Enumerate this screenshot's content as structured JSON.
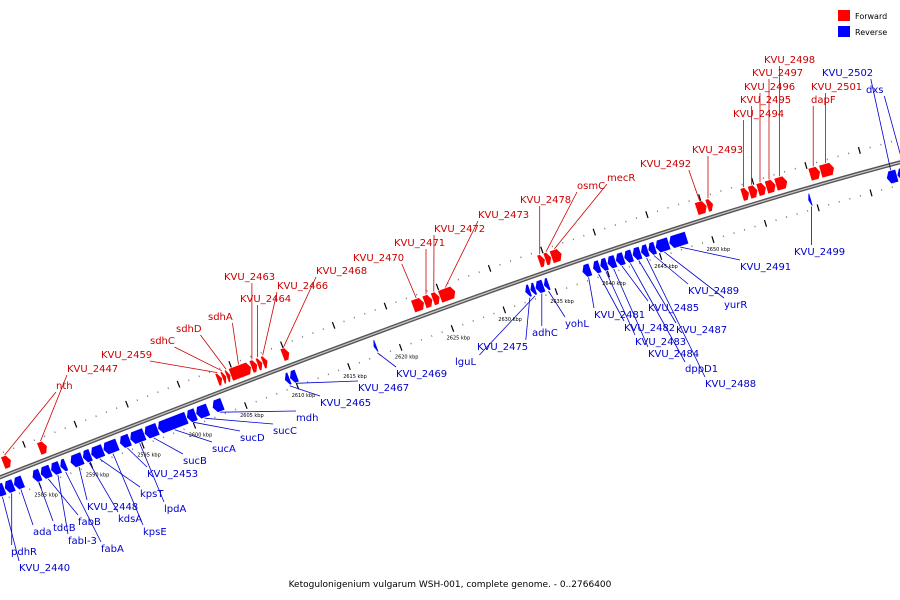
{
  "caption": "Ketogulonigenium vulgarum WSH-001, complete genome. - 0..2766400",
  "legend": [
    {
      "label": "Forward",
      "color": "#ff0000"
    },
    {
      "label": "Reverse",
      "color": "#0000ff"
    }
  ],
  "scale_labels": [
    {
      "text": "2585 kbp",
      "x": 2585
    },
    {
      "text": "2590 kbp",
      "x": 2590
    },
    {
      "text": "2595 kbp",
      "x": 2595
    },
    {
      "text": "2600 kbp",
      "x": 2600
    },
    {
      "text": "2605 kbp",
      "x": 2605
    },
    {
      "text": "2610 kbp",
      "x": 2610
    },
    {
      "text": "2615 kbp",
      "x": 2615
    },
    {
      "text": "2620 kbp",
      "x": 2620
    },
    {
      "text": "2625 kbp",
      "x": 2625
    },
    {
      "text": "2630 kbp",
      "x": 2630
    },
    {
      "text": "2635 kbp",
      "x": 2635
    },
    {
      "text": "2640 kbp",
      "x": 2640
    },
    {
      "text": "2645 kbp",
      "x": 2645
    },
    {
      "text": "2650 kbp",
      "x": 2650
    }
  ],
  "forward_genes": [
    {
      "name": "nth",
      "start": 2582.6,
      "end": 2583.4
    },
    {
      "name": "KVU_2447",
      "start": 2586.1,
      "end": 2586.9
    },
    {
      "name": "KVU_2459",
      "start": 2603.4,
      "end": 2603.9
    },
    {
      "name": "sdhC",
      "start": 2603.9,
      "end": 2604.3
    },
    {
      "name": "sdhD",
      "start": 2604.3,
      "end": 2604.7
    },
    {
      "name": "sdhA",
      "start": 2604.7,
      "end": 2606.7
    },
    {
      "name": "KVU_2463",
      "start": 2606.7,
      "end": 2607.3
    },
    {
      "name": "KVU_2464",
      "start": 2607.3,
      "end": 2607.8
    },
    {
      "name": "KVU_2466",
      "start": 2607.8,
      "end": 2608.3
    },
    {
      "name": "KVU_2468",
      "start": 2609.7,
      "end": 2610.4
    },
    {
      "name": "KVU_2470",
      "start": 2622.3,
      "end": 2623.4
    },
    {
      "name": "KVU_2471",
      "start": 2623.4,
      "end": 2624.2
    },
    {
      "name": "KVU_2472",
      "start": 2624.2,
      "end": 2624.9
    },
    {
      "name": "KVU_2473",
      "start": 2624.9,
      "end": 2626.4
    },
    {
      "name": "KVU_2478",
      "start": 2634.4,
      "end": 2635.0
    },
    {
      "name": "osmC",
      "start": 2635.0,
      "end": 2635.6
    },
    {
      "name": "mecR",
      "start": 2635.6,
      "end": 2636.6
    },
    {
      "name": "KVU_2492",
      "start": 2649.4,
      "end": 2650.4
    },
    {
      "name": "KVU_2493",
      "start": 2650.4,
      "end": 2651.0
    },
    {
      "name": "KVU_2494",
      "start": 2653.7,
      "end": 2654.4
    },
    {
      "name": "KVU_2495",
      "start": 2654.4,
      "end": 2655.2
    },
    {
      "name": "KVU_2496",
      "start": 2655.2,
      "end": 2656.0
    },
    {
      "name": "KVU_2497",
      "start": 2656.0,
      "end": 2656.9
    },
    {
      "name": "KVU_2498",
      "start": 2656.9,
      "end": 2658.0
    },
    {
      "name": "dapF",
      "start": 2660.1,
      "end": 2661.1
    },
    {
      "name": "KVU_2501",
      "start": 2661.1,
      "end": 2662.4
    }
  ],
  "reverse_genes": [
    {
      "name": "KVU_2440",
      "start": 2581.0,
      "end": 2581.9
    },
    {
      "name": "pdhR",
      "start": 2581.9,
      "end": 2582.8
    },
    {
      "name": "ada",
      "start": 2582.8,
      "end": 2583.7
    },
    {
      "name": "tdcB",
      "start": 2584.6,
      "end": 2585.4
    },
    {
      "name": "fabB",
      "start": 2585.4,
      "end": 2586.4
    },
    {
      "name": "fabI-3",
      "start": 2586.4,
      "end": 2587.3
    },
    {
      "name": "fabA",
      "start": 2587.3,
      "end": 2587.9
    },
    {
      "name": "KVU_2448",
      "start": 2588.3,
      "end": 2589.5
    },
    {
      "name": "kdsA",
      "start": 2589.5,
      "end": 2590.3
    },
    {
      "name": "kpsT",
      "start": 2590.3,
      "end": 2591.5
    },
    {
      "name": "kpsE",
      "start": 2591.5,
      "end": 2592.9
    },
    {
      "name": "KVU_2453",
      "start": 2593.1,
      "end": 2594.1
    },
    {
      "name": "lpdA",
      "start": 2594.1,
      "end": 2595.5
    },
    {
      "name": "sucB",
      "start": 2595.5,
      "end": 2596.8
    },
    {
      "name": "sucA",
      "start": 2596.8,
      "end": 2599.6
    },
    {
      "name": "sucD",
      "start": 2599.6,
      "end": 2600.5
    },
    {
      "name": "sucC",
      "start": 2600.5,
      "end": 2601.7
    },
    {
      "name": "mdh",
      "start": 2602.1,
      "end": 2603.1
    },
    {
      "name": "KVU_2465",
      "start": 2609.1,
      "end": 2609.6
    },
    {
      "name": "KVU_2467",
      "start": 2609.6,
      "end": 2610.3
    },
    {
      "name": "KVU_2469",
      "start": 2617.7,
      "end": 2618.0
    },
    {
      "name": "KVU_2475",
      "start": 2632.3,
      "end": 2632.8
    },
    {
      "name": "lguL",
      "start": 2632.8,
      "end": 2633.3
    },
    {
      "name": "adhC",
      "start": 2633.3,
      "end": 2634.1
    },
    {
      "name": "yohL",
      "start": 2634.1,
      "end": 2634.6
    },
    {
      "name": "KVU_2481",
      "start": 2637.8,
      "end": 2638.6
    },
    {
      "name": "KVU_2482",
      "start": 2638.8,
      "end": 2639.5
    },
    {
      "name": "KVU_2483",
      "start": 2639.5,
      "end": 2640.2
    },
    {
      "name": "KVU_2484",
      "start": 2640.2,
      "end": 2641.0
    },
    {
      "name": "KVU_2485",
      "start": 2641.0,
      "end": 2641.8
    },
    {
      "name": "dppD1",
      "start": 2641.8,
      "end": 2642.6
    },
    {
      "name": "KVU_2487",
      "start": 2642.6,
      "end": 2643.4
    },
    {
      "name": "KVU_2488",
      "start": 2643.4,
      "end": 2644.1
    },
    {
      "name": "KVU_2489",
      "start": 2644.1,
      "end": 2644.8
    },
    {
      "name": "yurR",
      "start": 2644.8,
      "end": 2646.1
    },
    {
      "name": "KVU_2491",
      "start": 2646.1,
      "end": 2647.8
    },
    {
      "name": "KVU_2499",
      "start": 2659.3,
      "end": 2659.6
    },
    {
      "name": "KVU_2502",
      "start": 2666.7,
      "end": 2667.7
    },
    {
      "name": "dxs",
      "start": 2667.7,
      "end": 2669.3
    }
  ]
}
